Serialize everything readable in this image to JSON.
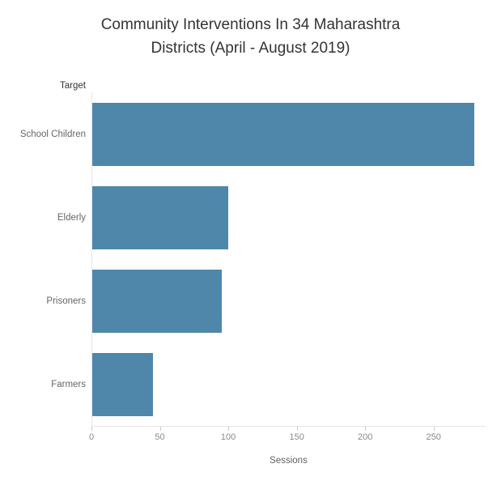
{
  "title_line1": "Community Interventions In 34 Maharashtra",
  "title_line2": "Districts (April - August 2019)",
  "chart_data": {
    "type": "bar",
    "orientation": "horizontal",
    "title": "Community Interventions In 34 Maharashtra Districts (April - August 2019)",
    "categories": [
      "School Children",
      "Elderly",
      "Prisoners",
      "Farmers"
    ],
    "values": [
      280,
      100,
      95,
      45
    ],
    "category_axis_label": "Target",
    "value_axis_label": "Sessions",
    "x_ticks": [
      0,
      50,
      100,
      150,
      200,
      250
    ],
    "xlim": [
      0,
      288
    ],
    "bar_color": "#4f87ab",
    "grid": false,
    "legend": false
  }
}
